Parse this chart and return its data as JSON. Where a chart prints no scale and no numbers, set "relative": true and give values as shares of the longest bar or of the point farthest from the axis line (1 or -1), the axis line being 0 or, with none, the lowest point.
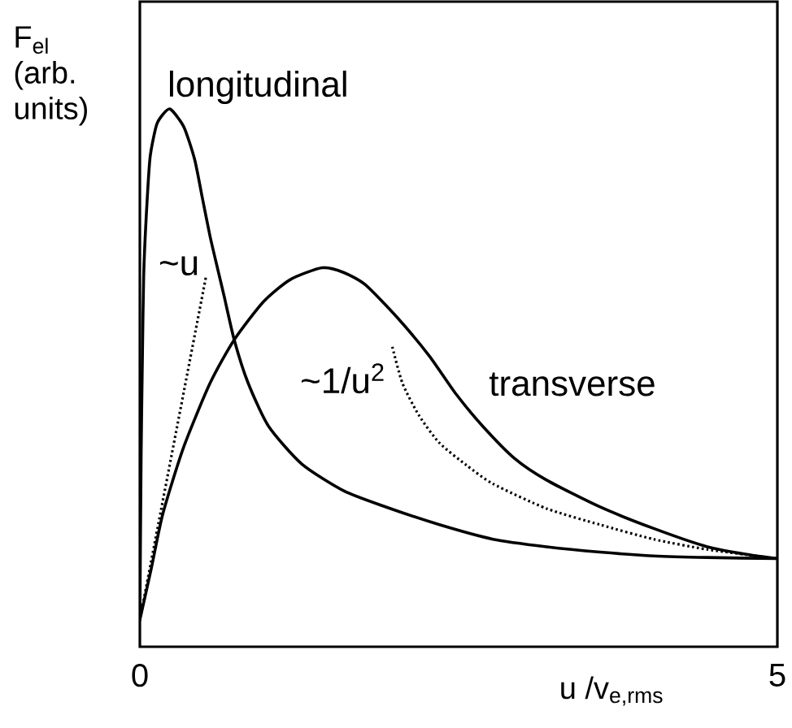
{
  "chart_data": {
    "type": "line",
    "relative": true,
    "xlabel": "u /v$_{e,rms}$",
    "ylabel": "F$_{el}$ (arb. units)",
    "xlim": [
      0,
      5
    ],
    "xticks": [
      0,
      5
    ],
    "tick_labels": "x",
    "series": [
      {
        "name": "longitudinal",
        "color": "#000000",
        "line_style": "solid",
        "x": [
          0,
          0.01,
          0.02,
          0.03,
          0.05,
          0.08,
          0.13,
          0.18,
          0.24,
          0.345,
          0.43,
          0.49,
          0.55,
          0.61,
          0.66,
          0.74,
          0.85,
          1.01,
          1.27,
          1.6,
          1.93,
          2.35,
          2.77,
          3.19,
          3.61,
          4.03,
          4.45,
          5.0
        ],
        "values": [
          0.05,
          0.36,
          0.54,
          0.69,
          0.8,
          0.91,
          0.97,
          0.99,
          1.0,
          0.967,
          0.906,
          0.835,
          0.764,
          0.703,
          0.653,
          0.571,
          0.49,
          0.41,
          0.34,
          0.29,
          0.26,
          0.227,
          0.2,
          0.186,
          0.176,
          0.169,
          0.166,
          0.164
        ]
      },
      {
        "name": "transverse",
        "color": "#000000",
        "line_style": "solid",
        "x": [
          0,
          0.09,
          0.18,
          0.34,
          0.55,
          0.74,
          0.97,
          1.18,
          1.43,
          1.6,
          1.77,
          2.02,
          2.27,
          2.48,
          2.69,
          2.94,
          3.19,
          3.61,
          4.03,
          4.45,
          4.78,
          5.0
        ],
        "values": [
          0.05,
          0.146,
          0.247,
          0.369,
          0.49,
          0.571,
          0.642,
          0.683,
          0.705,
          0.696,
          0.673,
          0.612,
          0.541,
          0.47,
          0.41,
          0.35,
          0.31,
          0.26,
          0.22,
          0.186,
          0.171,
          0.164
        ]
      },
      {
        "name": "~u",
        "color": "#000000",
        "line_style": "dotted",
        "x": [
          0,
          0.52
        ],
        "values": [
          0.05,
          0.69
        ]
      },
      {
        "name": "~1/u$^{2}$",
        "color": "#000000",
        "line_style": "dotted",
        "x": [
          1.98,
          2.06,
          2.19,
          2.35,
          2.56,
          2.77,
          3.19,
          3.61,
          4.03,
          4.45,
          5.0
        ],
        "values": [
          0.558,
          0.49,
          0.43,
          0.379,
          0.338,
          0.303,
          0.257,
          0.227,
          0.2,
          0.181,
          0.164
        ]
      }
    ]
  }
}
